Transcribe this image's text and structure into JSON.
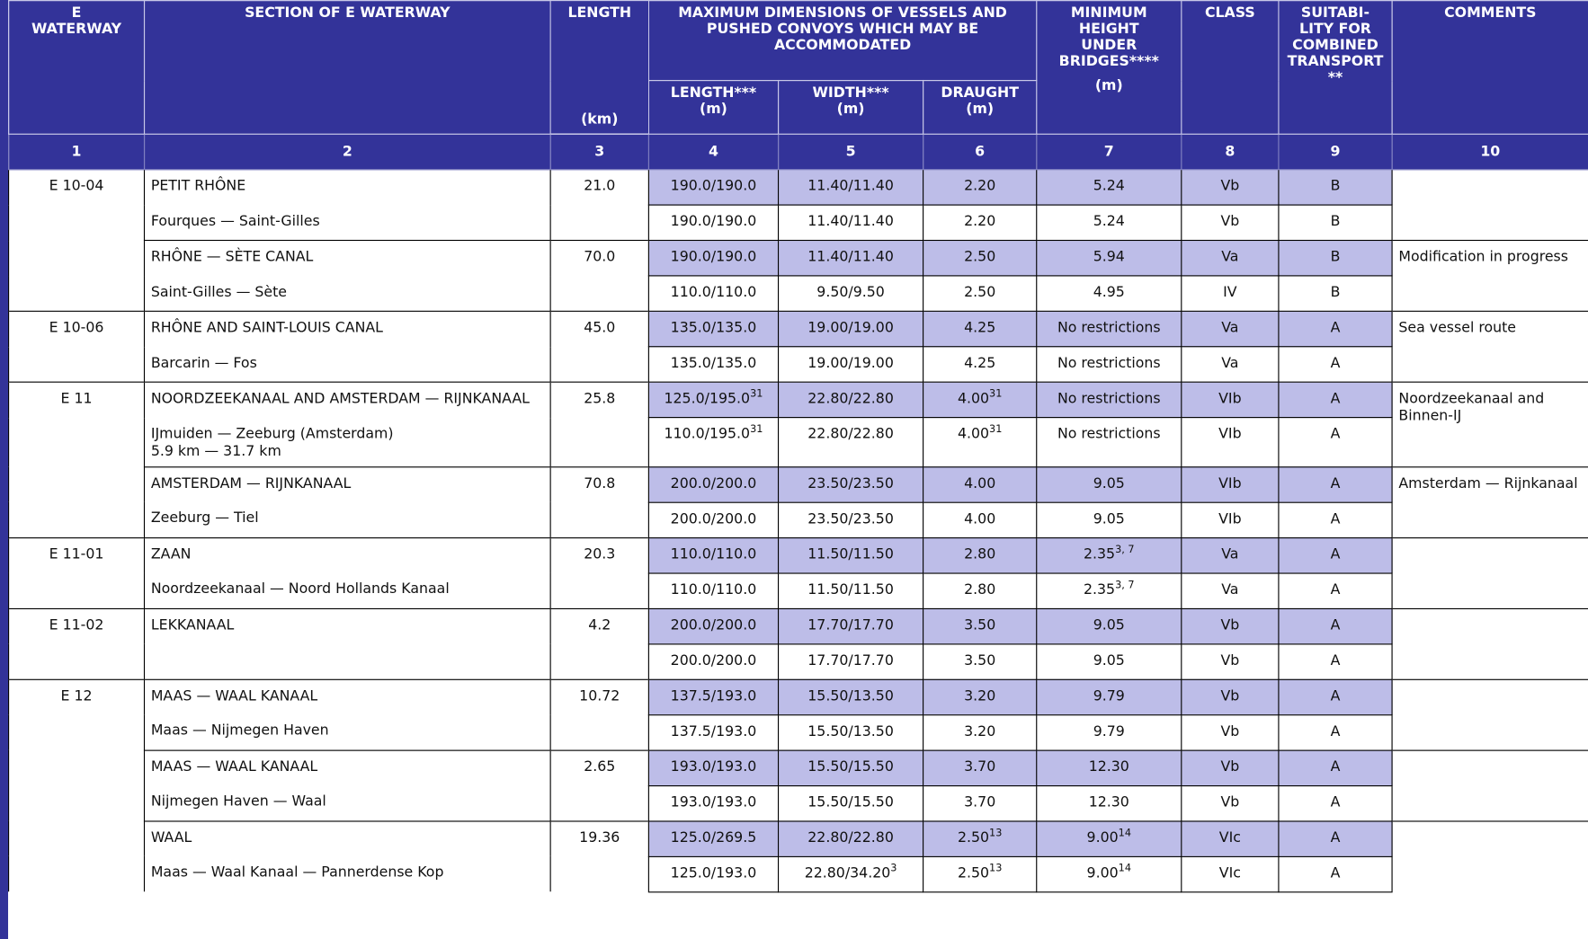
{
  "header": {
    "waterway": "E\nWATERWAY",
    "section": "SECTION OF E WATERWAY",
    "length": "LENGTH",
    "length_unit": "(km)",
    "max_dims": "MAXIMUM DIMENSIONS OF VESSELS AND PUSHED CONVOYS WHICH MAY BE ACCOMMODATED",
    "dim_length": "LENGTH***\n(m)",
    "dim_width": "WIDTH***\n(m)",
    "dim_draught": "DRAUGHT\n(m)",
    "height": "MINIMUM\nHEIGHT\nUNDER\nBRIDGES****",
    "height_unit": "(m)",
    "class": "CLASS",
    "suitability": "SUITABI-\nLITY FOR\nCOMBINED\nTRANSPORT\n**",
    "comments": "COMMENTS",
    "column_numbers": [
      1,
      2,
      3,
      4,
      5,
      6,
      7,
      8,
      9,
      10
    ]
  },
  "groups": [
    {
      "waterway": "E 10-04",
      "sections": [
        {
          "length": "21.0",
          "rows": [
            {
              "section": "PETIT RHÔNE",
              "cells": [
                "190.0/190.0",
                "11.40/11.40",
                "2.20",
                "5.24",
                "Vb",
                "B"
              ]
            },
            {
              "section": "Fourques — Saint-Gilles",
              "cells": [
                "190.0/190.0",
                "11.40/11.40",
                "2.20",
                "5.24",
                "Vb",
                "B"
              ]
            }
          ]
        },
        {
          "length": "70.0",
          "comment": "Modification in progress",
          "rows": [
            {
              "section": "RHÔNE — SÈTE CANAL",
              "cells": [
                "190.0/190.0",
                "11.40/11.40",
                "2.50",
                "5.94",
                "Va",
                "B"
              ]
            },
            {
              "section": "Saint-Gilles — Sète",
              "cells": [
                "110.0/110.0",
                "9.50/9.50",
                "2.50",
                "4.95",
                "IV",
                "B"
              ]
            }
          ]
        }
      ]
    },
    {
      "waterway": "E 10-06",
      "sections": [
        {
          "length": "45.0",
          "comment": "Sea vessel route",
          "rows": [
            {
              "section": "RHÔNE AND SAINT-LOUIS CANAL",
              "cells": [
                "135.0/135.0",
                "19.00/19.00",
                "4.25",
                "No restrictions",
                "Va",
                "A"
              ]
            },
            {
              "section": "Barcarin — Fos",
              "cells": [
                "135.0/135.0",
                "19.00/19.00",
                "4.25",
                "No restrictions",
                "Va",
                "A"
              ]
            }
          ]
        }
      ]
    },
    {
      "waterway": "E 11",
      "sections": [
        {
          "length": "25.8",
          "comment": "Noordzeekanaal and Binnen-IJ",
          "rows": [
            {
              "section": "NOORDZEEKANAAL AND AMSTERDAM — RIJNKANAAL",
              "cells": [
                {
                  "text": "125.0/195.0",
                  "sup": "31"
                },
                "22.80/22.80",
                {
                  "text": "4.00",
                  "sup": "31"
                },
                "No restrictions",
                "VIb",
                "A"
              ]
            },
            {
              "section": "IJmuiden — Zeeburg (Amsterdam)\n5.9 km — 31.7 km",
              "cells": [
                {
                  "text": "110.0/195.0",
                  "sup": "31"
                },
                "22.80/22.80",
                {
                  "text": "4.00",
                  "sup": "31"
                },
                "No restrictions",
                "VIb",
                "A"
              ]
            }
          ]
        },
        {
          "length": "70.8",
          "comment": "Amsterdam — Rijnkanaal",
          "rows": [
            {
              "section": "AMSTERDAM — RIJNKANAAL",
              "cells": [
                "200.0/200.0",
                "23.50/23.50",
                "4.00",
                "9.05",
                "VIb",
                "A"
              ]
            },
            {
              "section": "Zeeburg — Tiel",
              "cells": [
                "200.0/200.0",
                "23.50/23.50",
                "4.00",
                "9.05",
                "VIb",
                "A"
              ]
            }
          ]
        }
      ]
    },
    {
      "waterway": "E 11-01",
      "sections": [
        {
          "length": "20.3",
          "rows": [
            {
              "section": "ZAAN",
              "cells": [
                "110.0/110.0",
                "11.50/11.50",
                "2.80",
                {
                  "text": "2.35",
                  "sup": "3, 7"
                },
                "Va",
                "A"
              ]
            },
            {
              "section": "Noordzeekanaal — Noord Hollands Kanaal",
              "cells": [
                "110.0/110.0",
                "11.50/11.50",
                "2.80",
                {
                  "text": "2.35",
                  "sup": "3, 7"
                },
                "Va",
                "A"
              ]
            }
          ]
        }
      ]
    },
    {
      "waterway": "E 11-02",
      "sections": [
        {
          "length": "4.2",
          "rows": [
            {
              "section": "LEKKANAAL",
              "cells": [
                "200.0/200.0",
                "17.70/17.70",
                "3.50",
                "9.05",
                "Vb",
                "A"
              ]
            },
            {
              "cells": [
                "200.0/200.0",
                "17.70/17.70",
                "3.50",
                "9.05",
                "Vb",
                "A"
              ]
            }
          ]
        }
      ]
    },
    {
      "waterway": "E 12",
      "sections": [
        {
          "length": "10.72",
          "rows": [
            {
              "section": "MAAS — WAAL KANAAL",
              "cells": [
                "137.5/193.0",
                "15.50/13.50",
                "3.20",
                "9.79",
                "Vb",
                "A"
              ]
            },
            {
              "section": "Maas — Nijmegen Haven",
              "cells": [
                "137.5/193.0",
                "15.50/13.50",
                "3.20",
                "9.79",
                "Vb",
                "A"
              ]
            }
          ]
        },
        {
          "length": "2.65",
          "rows": [
            {
              "section": "MAAS — WAAL KANAAL",
              "cells": [
                "193.0/193.0",
                "15.50/15.50",
                "3.70",
                "12.30",
                "Vb",
                "A"
              ]
            },
            {
              "section": "Nijmegen Haven — Waal",
              "cells": [
                "193.0/193.0",
                "15.50/15.50",
                "3.70",
                "12.30",
                "Vb",
                "A"
              ]
            }
          ]
        },
        {
          "length": "19.36",
          "rows": [
            {
              "section": "WAAL",
              "cells": [
                "125.0/269.5",
                "22.80/22.80",
                {
                  "text": "2.50",
                  "sup": "13"
                },
                {
                  "text": "9.00",
                  "sup": "14"
                },
                "VIc",
                "A"
              ]
            },
            {
              "section": "Maas — Waal Kanaal — Pannerdense Kop",
              "cells": [
                "125.0/193.0",
                {
                  "text": "22.80/34.20",
                  "sup": "3"
                },
                {
                  "text": "2.50",
                  "sup": "13"
                },
                {
                  "text": "9.00",
                  "sup": "14"
                },
                "VIc",
                "A"
              ]
            }
          ]
        }
      ]
    }
  ]
}
